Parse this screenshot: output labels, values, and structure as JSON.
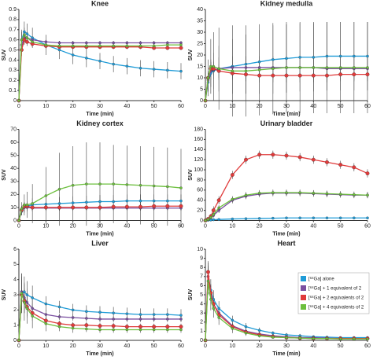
{
  "chart_data": [
    {
      "type": "line",
      "title": "Knee",
      "xlabel": "Time (min)",
      "ylabel": "SUV",
      "x": [
        0,
        1,
        2,
        3,
        5,
        10,
        15,
        20,
        25,
        30,
        35,
        40,
        45,
        50,
        55,
        60
      ],
      "xlim": [
        0,
        60
      ],
      "xticks": [
        0,
        10,
        20,
        30,
        40,
        50,
        60
      ],
      "ylim": [
        0,
        0.9
      ],
      "yticks": [
        0,
        0.1,
        0.2,
        0.3,
        0.4,
        0.5,
        0.6,
        0.7,
        0.8,
        0.9
      ],
      "series": [
        {
          "color": "#1f9bd7",
          "values": [
            0,
            0.6,
            0.68,
            0.66,
            0.62,
            0.55,
            0.5,
            0.45,
            0.42,
            0.39,
            0.36,
            0.34,
            0.32,
            0.31,
            0.3,
            0.29
          ],
          "errors": [
            0,
            0.1,
            0.1,
            0.1,
            0.1,
            0.1,
            0.09,
            0.09,
            0.09,
            0.08,
            0.08,
            0.08,
            0.08,
            0.08,
            0.08,
            0.08
          ]
        },
        {
          "color": "#7a4fa0",
          "values": [
            0,
            0.55,
            0.62,
            0.62,
            0.6,
            0.58,
            0.57,
            0.57,
            0.57,
            0.57,
            0.57,
            0.57,
            0.57,
            0.57,
            0.57,
            0.57
          ],
          "errors": [
            0,
            0.06,
            0.05,
            0.04,
            0.03,
            0.02,
            0.02,
            0.02,
            0.02,
            0.02,
            0.02,
            0.02,
            0.02,
            0.02,
            0.02,
            0.02
          ]
        },
        {
          "color": "#e03a3a",
          "values": [
            0,
            0.5,
            0.6,
            0.58,
            0.56,
            0.54,
            0.53,
            0.53,
            0.53,
            0.53,
            0.53,
            0.53,
            0.53,
            0.52,
            0.52,
            0.52
          ],
          "errors": [
            0,
            0.06,
            0.05,
            0.04,
            0.03,
            0.02,
            0.02,
            0.02,
            0.02,
            0.02,
            0.02,
            0.02,
            0.02,
            0.02,
            0.02,
            0.02
          ]
        },
        {
          "color": "#6cbf3d",
          "values": [
            0,
            0.6,
            0.65,
            0.62,
            0.58,
            0.55,
            0.54,
            0.54,
            0.54,
            0.54,
            0.54,
            0.54,
            0.54,
            0.54,
            0.55,
            0.55
          ],
          "errors": [
            0,
            0.08,
            0.07,
            0.06,
            0.05,
            0.04,
            0.03,
            0.03,
            0.03,
            0.03,
            0.03,
            0.03,
            0.03,
            0.03,
            0.03,
            0.03
          ]
        }
      ]
    },
    {
      "type": "line",
      "title": "Kidney medulla",
      "xlabel": "Time (min)",
      "ylabel": "SUV",
      "x": [
        0,
        1,
        2,
        3,
        5,
        10,
        15,
        20,
        25,
        30,
        35,
        40,
        45,
        50,
        55,
        60
      ],
      "xlim": [
        0,
        60
      ],
      "xticks": [
        0,
        10,
        20,
        30,
        40,
        50,
        60
      ],
      "ylim": [
        0,
        40
      ],
      "yticks": [
        0,
        5,
        10,
        15,
        20,
        25,
        30,
        35,
        40
      ],
      "series": [
        {
          "color": "#1f9bd7",
          "values": [
            0,
            8,
            12,
            13,
            14,
            15,
            16,
            17,
            18,
            18.5,
            19,
            19,
            19.5,
            19.5,
            19.5,
            19.5
          ],
          "errors": [
            0,
            4,
            6,
            8,
            10,
            12,
            13,
            14,
            15,
            15,
            15,
            15,
            15,
            15,
            15,
            15
          ]
        },
        {
          "color": "#7a4fa0",
          "values": [
            0,
            9,
            13,
            13.5,
            14,
            14.5,
            14.5,
            14.5,
            14.5,
            14.5,
            14.5,
            14.5,
            14,
            14,
            14,
            14
          ],
          "errors": [
            0,
            3,
            4,
            4,
            5,
            5,
            5,
            5,
            5,
            5,
            5,
            5,
            5,
            5,
            5,
            5
          ]
        },
        {
          "color": "#e03a3a",
          "values": [
            0,
            10,
            14,
            14,
            13,
            12,
            11.5,
            11,
            11,
            11,
            11,
            11,
            11,
            11.5,
            11.5,
            11.5
          ],
          "errors": [
            0,
            3,
            3,
            3,
            3,
            3,
            3,
            3,
            3,
            3,
            3,
            3,
            3,
            3,
            3,
            3
          ]
        },
        {
          "color": "#6cbf3d",
          "values": [
            0,
            10,
            15,
            15,
            14,
            13,
            13,
            13.5,
            14,
            14.5,
            14.5,
            14.5,
            14.5,
            14.5,
            14.5,
            14.5
          ],
          "errors": [
            0,
            8,
            12,
            15,
            18,
            20,
            20,
            20,
            20,
            20,
            20,
            20,
            20,
            20,
            20,
            20
          ]
        }
      ]
    },
    {
      "type": "line",
      "title": "Kidney cortex",
      "xlabel": "Time (min)",
      "ylabel": "SUV",
      "x": [
        0,
        1,
        2,
        3,
        5,
        10,
        15,
        20,
        25,
        30,
        35,
        40,
        45,
        50,
        55,
        60
      ],
      "xlim": [
        0,
        60
      ],
      "xticks": [
        0,
        10,
        20,
        30,
        40,
        50,
        60
      ],
      "ylim": [
        0,
        70
      ],
      "yticks": [
        0,
        10,
        20,
        30,
        40,
        50,
        60,
        70
      ],
      "series": [
        {
          "color": "#1f9bd7",
          "values": [
            0,
            7,
            10,
            11,
            12,
            12.5,
            13,
            13.5,
            14,
            14.5,
            14.5,
            15,
            15,
            15,
            15,
            15
          ],
          "errors": [
            0,
            3,
            4,
            4,
            5,
            5,
            5,
            5,
            5,
            5,
            5,
            5,
            5,
            5,
            5,
            5
          ]
        },
        {
          "color": "#7a4fa0",
          "values": [
            0,
            8,
            10,
            10,
            9.5,
            9.5,
            9.5,
            9.5,
            9.5,
            9.5,
            9.5,
            9.5,
            9.5,
            9.5,
            9.5,
            9.5
          ],
          "errors": [
            0,
            3,
            3,
            3,
            2,
            2,
            2,
            2,
            2,
            2,
            2,
            2,
            2,
            2,
            2,
            2
          ]
        },
        {
          "color": "#e03a3a",
          "values": [
            0,
            8,
            11,
            11,
            10,
            10,
            10,
            10,
            10,
            10,
            10.5,
            10.5,
            10.5,
            11,
            11,
            11
          ],
          "errors": [
            0,
            3,
            3,
            3,
            2,
            2,
            2,
            2,
            2,
            2,
            2,
            2,
            2,
            2,
            2,
            2
          ]
        },
        {
          "color": "#6cbf3d",
          "values": [
            0,
            9,
            12,
            12,
            13,
            19,
            24,
            27,
            28,
            28,
            28,
            27.5,
            27,
            26.5,
            26,
            25
          ],
          "errors": [
            0,
            5,
            8,
            10,
            15,
            22,
            28,
            30,
            32,
            32,
            30,
            30,
            30,
            30,
            30,
            30
          ]
        }
      ]
    },
    {
      "type": "line",
      "title": "Urinary bladder",
      "xlabel": "Time (min)",
      "ylabel": "SUV",
      "x": [
        0,
        1,
        2,
        3,
        5,
        10,
        15,
        20,
        25,
        30,
        35,
        40,
        45,
        50,
        55,
        60
      ],
      "xlim": [
        0,
        60
      ],
      "xticks": [
        0,
        10,
        20,
        30,
        40,
        50,
        60
      ],
      "ylim": [
        0,
        180
      ],
      "yticks": [
        0,
        20,
        40,
        60,
        80,
        100,
        120,
        140,
        160,
        180
      ],
      "series": [
        {
          "color": "#1f9bd7",
          "values": [
            0,
            0.5,
            1,
            1.5,
            2,
            3,
            3.5,
            4,
            4.5,
            5,
            5,
            5,
            5,
            5,
            5,
            5
          ],
          "errors": [
            0,
            1,
            1,
            1,
            1,
            2,
            2,
            2,
            2,
            2,
            2,
            2,
            2,
            2,
            2,
            2
          ]
        },
        {
          "color": "#7a4fa0",
          "values": [
            0,
            2,
            5,
            10,
            20,
            40,
            48,
            52,
            54,
            54,
            54,
            53,
            52,
            51,
            50,
            50
          ],
          "errors": [
            0,
            2,
            3,
            4,
            5,
            6,
            6,
            6,
            6,
            6,
            6,
            6,
            6,
            6,
            6,
            6
          ]
        },
        {
          "color": "#e03a3a",
          "values": [
            0,
            3,
            8,
            20,
            40,
            90,
            120,
            130,
            130,
            128,
            125,
            120,
            115,
            110,
            105,
            93
          ],
          "errors": [
            0,
            3,
            5,
            8,
            8,
            8,
            8,
            8,
            8,
            8,
            8,
            8,
            8,
            8,
            8,
            8
          ]
        },
        {
          "color": "#6cbf3d",
          "values": [
            0,
            2,
            6,
            12,
            25,
            42,
            50,
            54,
            55,
            55,
            55,
            54,
            53,
            52,
            51,
            50
          ],
          "errors": [
            0,
            2,
            3,
            4,
            5,
            6,
            6,
            6,
            6,
            6,
            6,
            6,
            6,
            6,
            6,
            6
          ]
        }
      ]
    },
    {
      "type": "line",
      "title": "Liver",
      "xlabel": "Time (min)",
      "ylabel": "SUV",
      "x": [
        0,
        1,
        2,
        3,
        5,
        10,
        15,
        20,
        25,
        30,
        35,
        40,
        45,
        50,
        55,
        60
      ],
      "xlim": [
        0,
        60
      ],
      "xticks": [
        0,
        10,
        20,
        30,
        40,
        50,
        60
      ],
      "ylim": [
        0,
        6
      ],
      "yticks": [
        0,
        1,
        2,
        3,
        4,
        5,
        6
      ],
      "series": [
        {
          "color": "#1f9bd7",
          "values": [
            0,
            3,
            3.2,
            3,
            2.8,
            2.4,
            2.2,
            2,
            1.9,
            1.85,
            1.8,
            1.75,
            1.7,
            1.7,
            1.7,
            1.65
          ],
          "errors": [
            0,
            1.2,
            1,
            0.9,
            0.8,
            0.5,
            0.4,
            0.4,
            0.4,
            0.4,
            0.4,
            0.4,
            0.4,
            0.4,
            0.4,
            0.4
          ]
        },
        {
          "color": "#7a4fa0",
          "values": [
            0,
            3.2,
            2.8,
            2.5,
            2.1,
            1.7,
            1.55,
            1.5,
            1.45,
            1.4,
            1.4,
            1.4,
            1.4,
            1.4,
            1.4,
            1.4
          ],
          "errors": [
            0,
            1.2,
            1,
            0.9,
            0.6,
            0.3,
            0.2,
            0.2,
            0.2,
            0.2,
            0.2,
            0.2,
            0.2,
            0.2,
            0.2,
            0.2
          ]
        },
        {
          "color": "#e03a3a",
          "values": [
            0,
            3,
            2.6,
            2.2,
            1.8,
            1.3,
            1.1,
            1,
            1,
            0.95,
            0.95,
            0.9,
            0.9,
            0.9,
            0.9,
            0.9
          ],
          "errors": [
            0,
            1,
            0.8,
            0.7,
            0.5,
            0.3,
            0.2,
            0.2,
            0.2,
            0.2,
            0.2,
            0.2,
            0.2,
            0.2,
            0.2,
            0.2
          ]
        },
        {
          "color": "#6cbf3d",
          "values": [
            0,
            3.1,
            2.5,
            2.1,
            1.6,
            1.1,
            0.9,
            0.8,
            0.75,
            0.7,
            0.7,
            0.7,
            0.7,
            0.7,
            0.7,
            0.7
          ],
          "errors": [
            0,
            1.3,
            1.2,
            1,
            0.8,
            0.5,
            0.3,
            0.3,
            0.2,
            0.2,
            0.2,
            0.2,
            0.2,
            0.2,
            0.2,
            0.2
          ]
        }
      ]
    },
    {
      "type": "line",
      "title": "Heart",
      "xlabel": "Time (min)",
      "ylabel": "SUV",
      "legend": "right",
      "x": [
        0,
        1,
        2,
        3,
        5,
        10,
        15,
        20,
        25,
        30,
        35,
        40,
        45,
        50,
        55,
        60
      ],
      "xlim": [
        0,
        60
      ],
      "xticks": [
        0,
        10,
        20,
        30,
        40,
        50,
        60
      ],
      "ylim": [
        0,
        10
      ],
      "yticks": [
        0,
        1,
        2,
        3,
        4,
        5,
        6,
        7,
        8,
        9,
        10
      ],
      "series": [
        {
          "name": "[⁶⁸Ga] alone",
          "color": "#1f9bd7",
          "values": [
            0,
            7,
            5.5,
            4.5,
            3.5,
            2.2,
            1.5,
            1.1,
            0.8,
            0.6,
            0.5,
            0.4,
            0.35,
            0.3,
            0.3,
            0.3
          ],
          "errors": [
            0,
            1.5,
            1.2,
            1,
            0.8,
            0.5,
            0.4,
            0.3,
            0.2,
            0.2,
            0.2,
            0.1,
            0.1,
            0.1,
            0.1,
            0.1
          ]
        },
        {
          "name": "[⁶⁸Ga] + 1 equivalent of 2",
          "color": "#7a4fa0",
          "values": [
            0,
            7,
            5,
            4,
            3,
            1.6,
            1,
            0.7,
            0.5,
            0.4,
            0.3,
            0.3,
            0.25,
            0.2,
            0.2,
            0.2
          ],
          "errors": [
            0,
            1.2,
            1,
            0.8,
            0.6,
            0.4,
            0.3,
            0.2,
            0.1,
            0.1,
            0.1,
            0.1,
            0.1,
            0.1,
            0.1,
            0.1
          ]
        },
        {
          "name": "[⁶⁸Ga] + 2 equivalents of 2",
          "color": "#e03a3a",
          "values": [
            0,
            7.5,
            5.2,
            4,
            2.8,
            1.5,
            0.9,
            0.6,
            0.4,
            0.3,
            0.25,
            0.2,
            0.2,
            0.2,
            0.2,
            0.2
          ],
          "errors": [
            0,
            1.2,
            1,
            0.8,
            0.6,
            0.4,
            0.3,
            0.2,
            0.1,
            0.1,
            0.1,
            0.1,
            0.1,
            0.1,
            0.1,
            0.1
          ]
        },
        {
          "name": "[⁶⁸Ga] + 4 equivalents of 2",
          "color": "#6cbf3d",
          "values": [
            0,
            6.5,
            4.5,
            3.5,
            2.5,
            1.3,
            0.8,
            0.5,
            0.35,
            0.3,
            0.25,
            0.2,
            0.2,
            0.15,
            0.15,
            0.15
          ],
          "errors": [
            0,
            1.5,
            1.2,
            1,
            0.8,
            0.5,
            0.3,
            0.2,
            0.1,
            0.1,
            0.1,
            0.1,
            0.1,
            0.1,
            0.1,
            0.1
          ]
        }
      ]
    }
  ]
}
